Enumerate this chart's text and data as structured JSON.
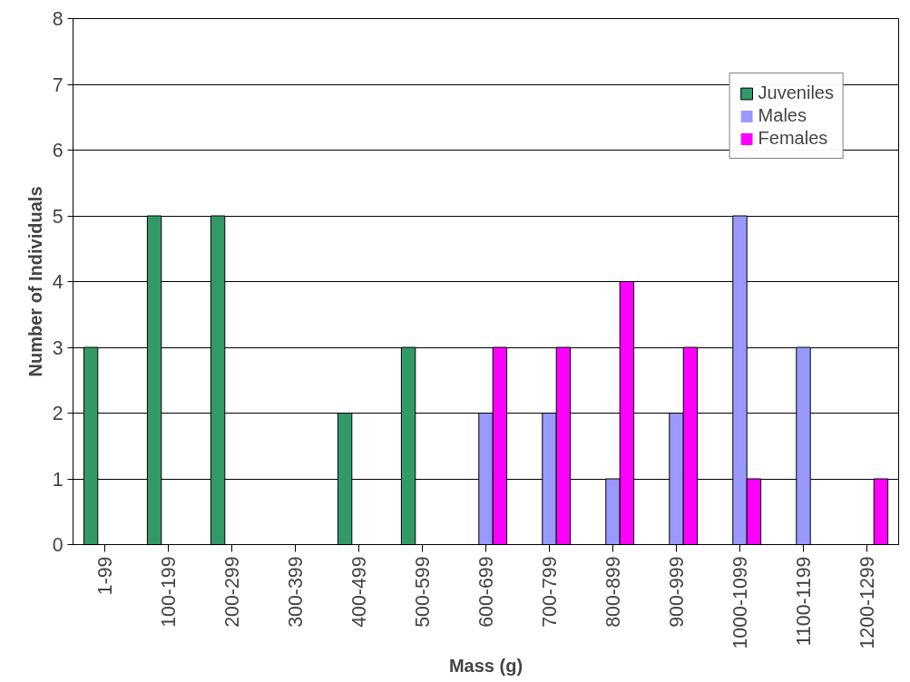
{
  "chart_data": {
    "type": "bar",
    "xlabel": "Mass (g)",
    "ylabel": "Number of Individuals",
    "categories": [
      "1-99",
      "100-199",
      "200-299",
      "300-399",
      "400-499",
      "500-599",
      "600-699",
      "700-799",
      "800-899",
      "900-999",
      "1000-1099",
      "1100-1199",
      "1200-1299"
    ],
    "series": [
      {
        "name": "Juveniles",
        "color": "#339966",
        "values": [
          3,
          5,
          5,
          0,
          2,
          3,
          0,
          0,
          0,
          0,
          0,
          0,
          0
        ]
      },
      {
        "name": "Males",
        "color": "#9999ff",
        "values": [
          0,
          0,
          0,
          0,
          0,
          0,
          2,
          2,
          1,
          2,
          5,
          3,
          0
        ]
      },
      {
        "name": "Females",
        "color": "#ff00ff",
        "values": [
          0,
          0,
          0,
          0,
          0,
          0,
          3,
          3,
          4,
          3,
          1,
          0,
          1
        ]
      }
    ],
    "ylim": [
      0,
      8
    ],
    "yticks": [
      0,
      1,
      2,
      3,
      4,
      5,
      6,
      7,
      8
    ],
    "grid": "y",
    "legend": "top right"
  }
}
